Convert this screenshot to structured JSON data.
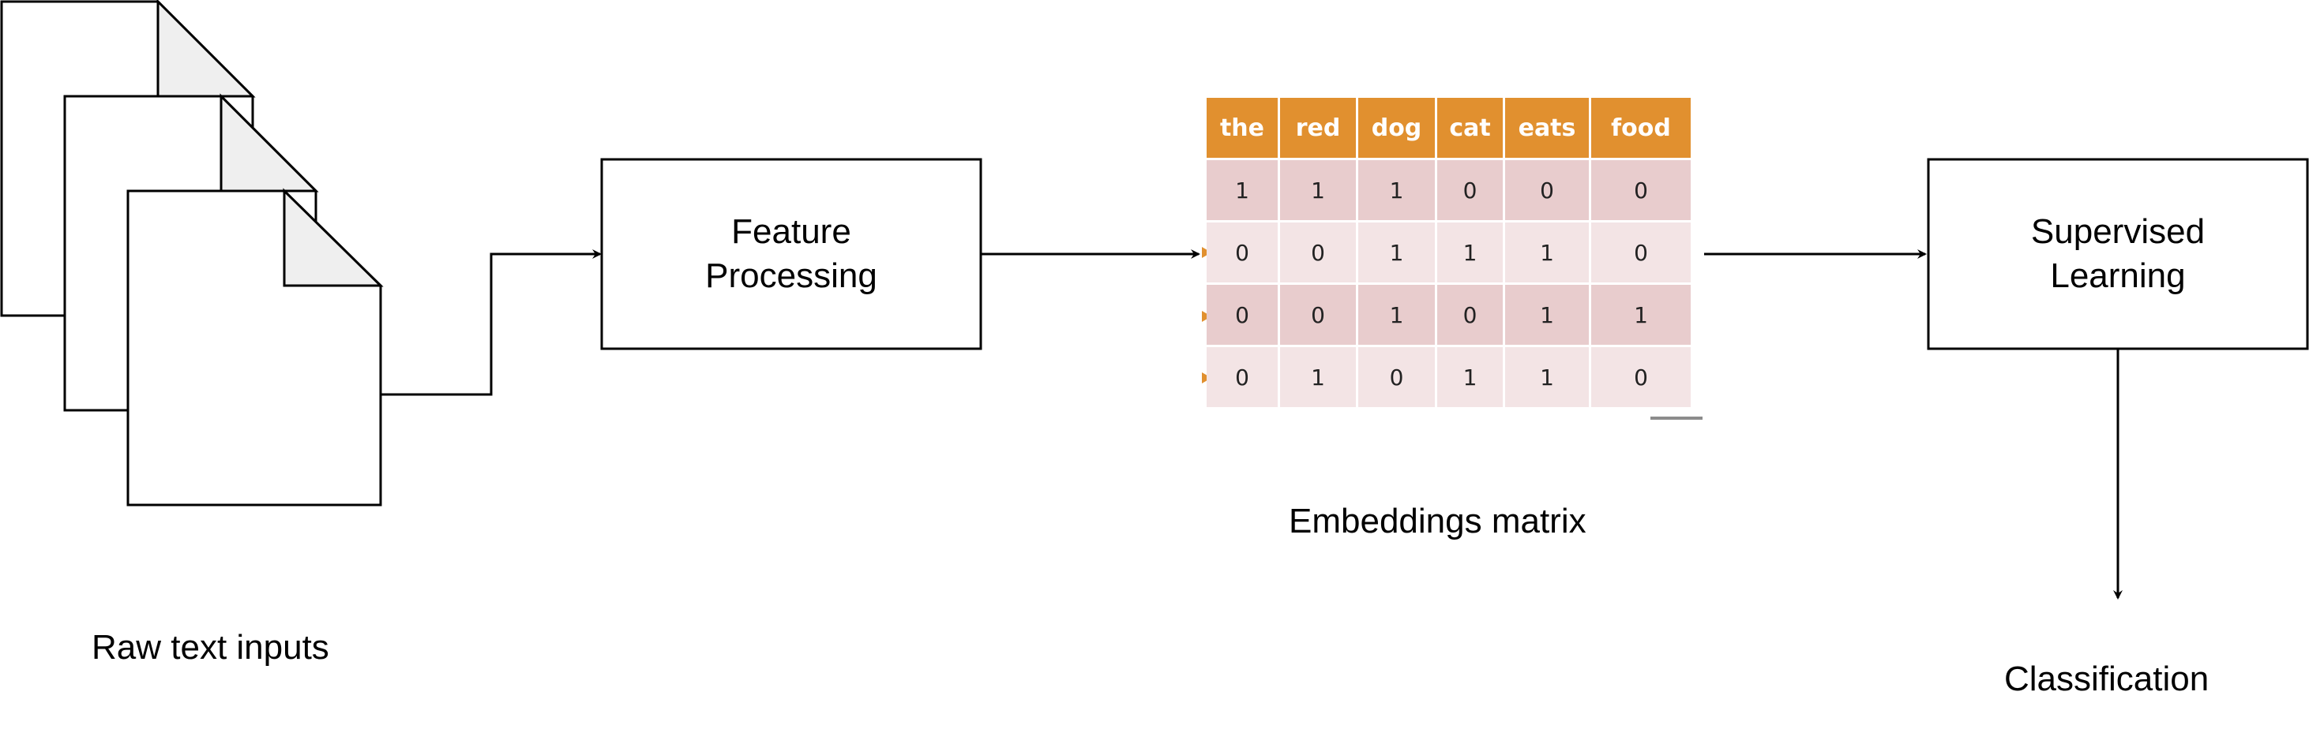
{
  "raw_text_label": "Raw text inputs",
  "feature_box": {
    "line1": "Feature",
    "line2": "Processing"
  },
  "supervised_box": {
    "line1": "Supervised",
    "line2": "Learning"
  },
  "embeddings_label": "Embeddings matrix",
  "classification_label": "Classification",
  "matrix": {
    "headers": [
      "the",
      "red",
      "dog",
      "cat",
      "eats",
      "food"
    ],
    "rows": [
      [
        "1",
        "1",
        "1",
        "0",
        "0",
        "0"
      ],
      [
        "0",
        "0",
        "1",
        "1",
        "1",
        "0"
      ],
      [
        "0",
        "0",
        "1",
        "0",
        "1",
        "1"
      ],
      [
        "0",
        "1",
        "0",
        "1",
        "1",
        "0"
      ]
    ]
  },
  "colors": {
    "header": "#e1902f",
    "row_dark": "#e8cccd",
    "row_light": "#f3e4e5",
    "marker": "#e1902f"
  }
}
